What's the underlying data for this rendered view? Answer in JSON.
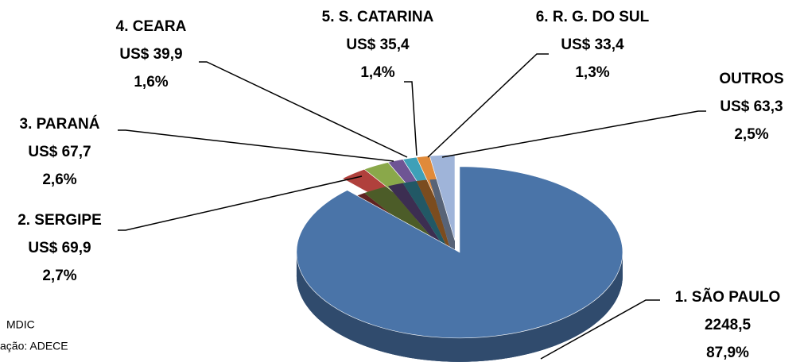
{
  "chart_data": {
    "type": "pie",
    "categories": [
      "1. SÃO PAULO",
      "2. SERGIPE",
      "3. PARANÁ",
      "4. CEARA",
      "5. S. CATARINA",
      "6. R. G. DO SUL",
      "OUTROS"
    ],
    "values": [
      2248.5,
      69.9,
      67.7,
      39.9,
      35.4,
      33.4,
      63.3
    ],
    "value_labels": [
      "2248,5",
      "US$ 69,9",
      "US$ 67,7",
      "US$ 39,9",
      "US$ 35,4",
      "US$ 33,4",
      "US$ 63,3"
    ],
    "percents": [
      87.9,
      2.7,
      2.6,
      1.6,
      1.4,
      1.3,
      2.5
    ],
    "percent_labels": [
      "87,9%",
      "2,7%",
      "2,6%",
      "1,6%",
      "1,4%",
      "1,3%",
      "2,5%"
    ],
    "colors": [
      "#4a74a8",
      "#b0403c",
      "#8aa84a",
      "#6e5594",
      "#3ea0b8",
      "#e08a3a",
      "#9fb4d9"
    ],
    "notes": [
      "MDIC",
      "ação: ADECE"
    ]
  }
}
